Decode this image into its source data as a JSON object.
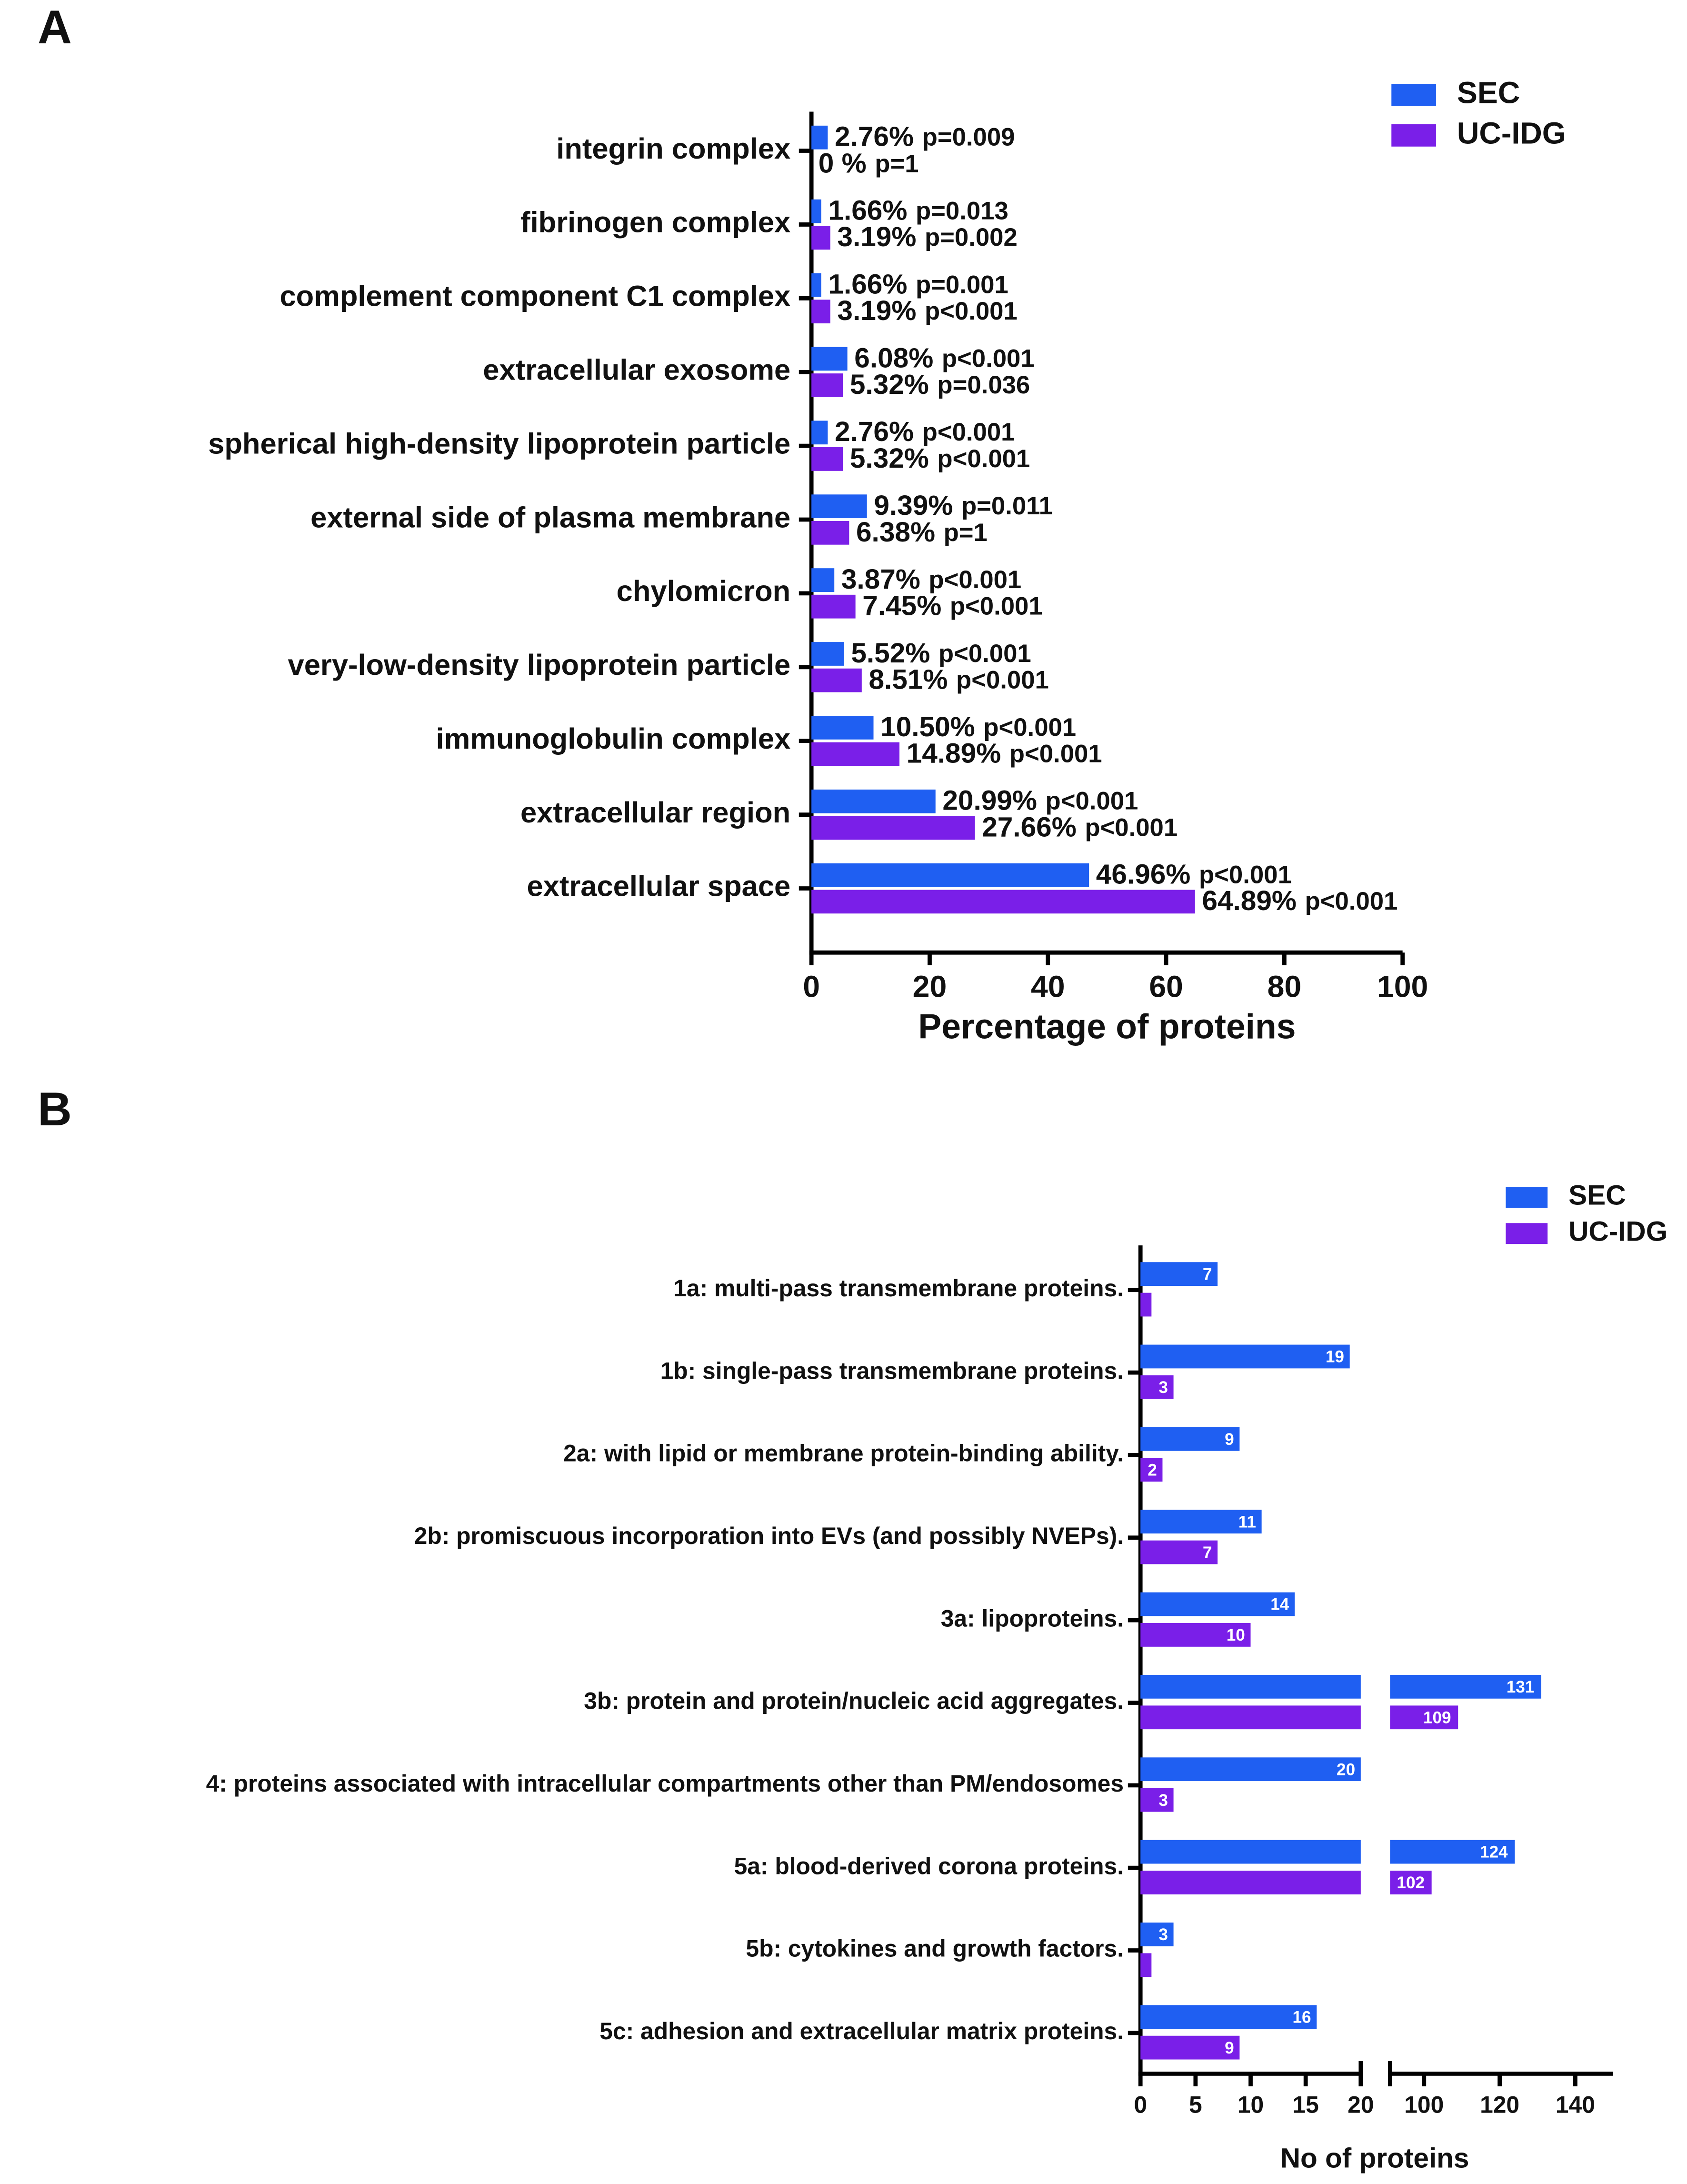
{
  "chart_data": [
    {
      "type": "bar",
      "orientation": "horizontal",
      "panel": "A",
      "xlabel": "Percentage of proteins",
      "categories": [
        "integrin complex",
        "fibrinogen complex",
        "complement component C1 complex",
        "extracellular exosome",
        "spherical high-density lipoprotein particle",
        "external side of plasma membrane",
        "chylomicron",
        "very-low-density lipoprotein particle",
        "immunoglobulin complex",
        "extracellular region",
        "extracellular space"
      ],
      "series": [
        {
          "name": "SEC",
          "color": "#1f5ff2",
          "values": [
            2.76,
            1.66,
            1.66,
            6.08,
            2.76,
            9.39,
            3.87,
            5.52,
            10.5,
            20.99,
            46.96
          ],
          "value_labels": [
            "2.76%",
            "1.66%",
            "1.66%",
            "6.08%",
            "2.76%",
            "9.39%",
            "3.87%",
            "5.52%",
            "10.50%",
            "20.99%",
            "46.96%"
          ],
          "p_values": [
            "p=0.009",
            "p=0.013",
            "p=0.001",
            "p<0.001",
            "p<0.001",
            "p=0.011",
            "p<0.001",
            "p<0.001",
            "p<0.001",
            "p<0.001",
            "p<0.001"
          ]
        },
        {
          "name": "UC-IDG",
          "color": "#7a1fe8",
          "values": [
            0,
            3.19,
            3.19,
            5.32,
            5.32,
            6.38,
            7.45,
            8.51,
            14.89,
            27.66,
            64.89
          ],
          "value_labels": [
            "0 %",
            "3.19%",
            "3.19%",
            "5.32%",
            "5.32%",
            "6.38%",
            "7.45%",
            "8.51%",
            "14.89%",
            "27.66%",
            "64.89%"
          ],
          "p_values": [
            "p=1",
            "p=0.002",
            "p<0.001",
            "p=0.036",
            "p<0.001",
            "p=1",
            "p<0.001",
            "p<0.001",
            "p<0.001",
            "p<0.001",
            "p<0.001"
          ]
        }
      ],
      "xlim": [
        0,
        100
      ],
      "xticks": [
        0,
        20,
        40,
        60,
        80,
        100
      ],
      "legend": "top-right"
    },
    {
      "type": "bar",
      "orientation": "horizontal",
      "panel": "B",
      "xlabel": "No of proteins",
      "categories": [
        "1a: multi-pass transmembrane proteins.",
        "1b: single-pass transmembrane proteins.",
        "2a: with lipid or membrane protein-binding ability.",
        "2b: promiscuous incorporation into EVs (and possibly NVEPs).",
        "3a: lipoproteins.",
        "3b: protein and protein/nucleic acid aggregates.",
        "4: proteins associated with intracellular compartments other than PM/endosomes",
        "5a: blood-derived corona proteins.",
        "5b: cytokines and growth factors.",
        "5c: adhesion and extracellular matrix proteins."
      ],
      "series": [
        {
          "name": "SEC",
          "color": "#1f5ff2",
          "values": [
            7,
            19,
            9,
            11,
            14,
            131,
            20,
            124,
            3,
            16
          ],
          "value_labels": [
            "7",
            "19",
            "9",
            "11",
            "14",
            "131",
            "20",
            "124",
            "3",
            "16"
          ]
        },
        {
          "name": "UC-IDG",
          "color": "#7a1fe8",
          "values": [
            1,
            3,
            2,
            7,
            10,
            109,
            3,
            102,
            1,
            9
          ],
          "value_labels": [
            null,
            "3",
            "2",
            "7",
            "10",
            "109",
            "3",
            "102",
            null,
            "9"
          ]
        }
      ],
      "xlim": [
        0,
        20
      ],
      "xticks": [
        0,
        5,
        10,
        15,
        20
      ],
      "xlim_break": [
        91,
        150
      ],
      "xticks_break": [
        100,
        120,
        140
      ],
      "legend": "top-right"
    }
  ]
}
